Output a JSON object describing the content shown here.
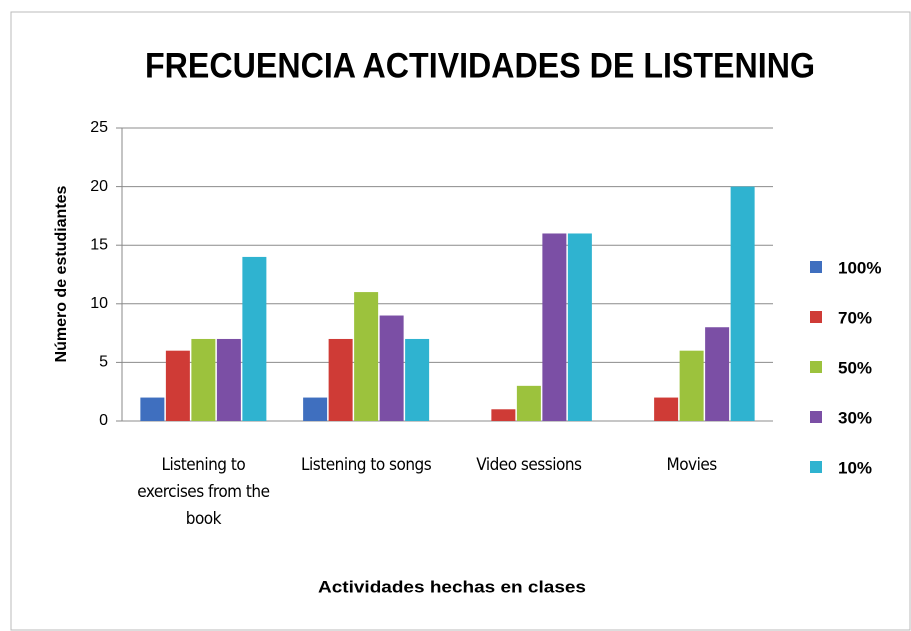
{
  "chart_data": {
    "type": "bar",
    "title": "FRECUENCIA ACTIVIDADES DE LISTENING",
    "x_label": "Actividades hechas en clases",
    "y_label": "Número de estudiantes",
    "categories": [
      "Listening to exercises from the book",
      "Listening to songs",
      "Video sessions",
      "Movies"
    ],
    "series": [
      {
        "name": "100%",
        "color": "#3f6fbf",
        "values": [
          2,
          2,
          0,
          0
        ]
      },
      {
        "name": "70%",
        "color": "#cf3b36",
        "values": [
          6,
          7,
          1,
          2
        ]
      },
      {
        "name": "50%",
        "color": "#9cc23d",
        "values": [
          7,
          11,
          3,
          6
        ]
      },
      {
        "name": "30%",
        "color": "#7b4fa5",
        "values": [
          7,
          9,
          16,
          8
        ]
      },
      {
        "name": "10%",
        "color": "#2fb3d0",
        "values": [
          14,
          7,
          16,
          20
        ]
      }
    ],
    "ylim": [
      0,
      25
    ],
    "yticks": [
      0,
      5,
      10,
      15,
      20,
      25
    ],
    "grid": true,
    "legend": "right"
  }
}
